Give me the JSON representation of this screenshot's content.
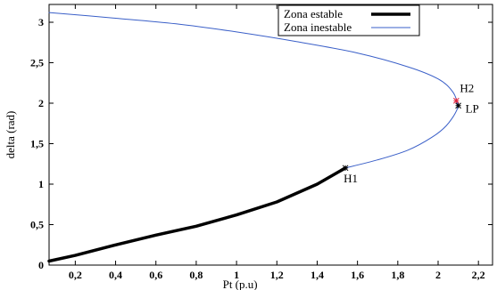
{
  "chart_data": {
    "type": "line",
    "title": "",
    "xlabel": "Pt (p.u)",
    "ylabel": "delta (rad)",
    "xlim": [
      0.07,
      2.27
    ],
    "ylim": [
      0,
      3.22
    ],
    "x_ticks": [
      {
        "value": 0.2,
        "label": "0,2"
      },
      {
        "value": 0.4,
        "label": "0,4"
      },
      {
        "value": 0.6,
        "label": "0,6"
      },
      {
        "value": 0.8,
        "label": "0,8"
      },
      {
        "value": 1.0,
        "label": "1"
      },
      {
        "value": 1.2,
        "label": "1,2"
      },
      {
        "value": 1.4,
        "label": "1,4"
      },
      {
        "value": 1.6,
        "label": "1,6"
      },
      {
        "value": 1.8,
        "label": "1,8"
      },
      {
        "value": 2.0,
        "label": "2"
      },
      {
        "value": 2.2,
        "label": "2,2"
      }
    ],
    "y_ticks": [
      {
        "value": 0,
        "label": "0"
      },
      {
        "value": 0.5,
        "label": "0,5"
      },
      {
        "value": 1.0,
        "label": "1"
      },
      {
        "value": 1.5,
        "label": "1,5"
      },
      {
        "value": 2.0,
        "label": "2"
      },
      {
        "value": 2.5,
        "label": "2,5"
      },
      {
        "value": 3.0,
        "label": "3"
      }
    ],
    "legend_position": "top-right",
    "series": [
      {
        "name": "Zona estable",
        "color": "#000000",
        "style": "thick",
        "x": [
          0.07,
          0.2,
          0.4,
          0.6,
          0.8,
          1.0,
          1.2,
          1.4,
          1.54
        ],
        "y": [
          0.05,
          0.12,
          0.25,
          0.37,
          0.48,
          0.62,
          0.78,
          1.0,
          1.2
        ]
      },
      {
        "name": "Zona inestable",
        "color": "#3a5fc8",
        "style": "thin",
        "x": [
          1.54,
          1.7,
          1.85,
          1.97,
          2.04,
          2.09,
          2.095,
          2.07,
          2.0,
          1.85,
          1.6,
          1.3,
          1.0,
          0.7,
          0.4,
          0.07
        ],
        "y": [
          1.2,
          1.3,
          1.42,
          1.58,
          1.72,
          1.9,
          2.0,
          2.15,
          2.3,
          2.45,
          2.62,
          2.76,
          2.88,
          2.98,
          3.05,
          3.12
        ]
      }
    ],
    "points": [
      {
        "label": "H1",
        "x": 1.54,
        "y": 1.2,
        "color": "#000000"
      },
      {
        "label": "H2",
        "x": 2.09,
        "y": 2.03,
        "color": "#e0243c"
      },
      {
        "label": "LP",
        "x": 2.1,
        "y": 1.97,
        "color": "#000000"
      }
    ]
  }
}
